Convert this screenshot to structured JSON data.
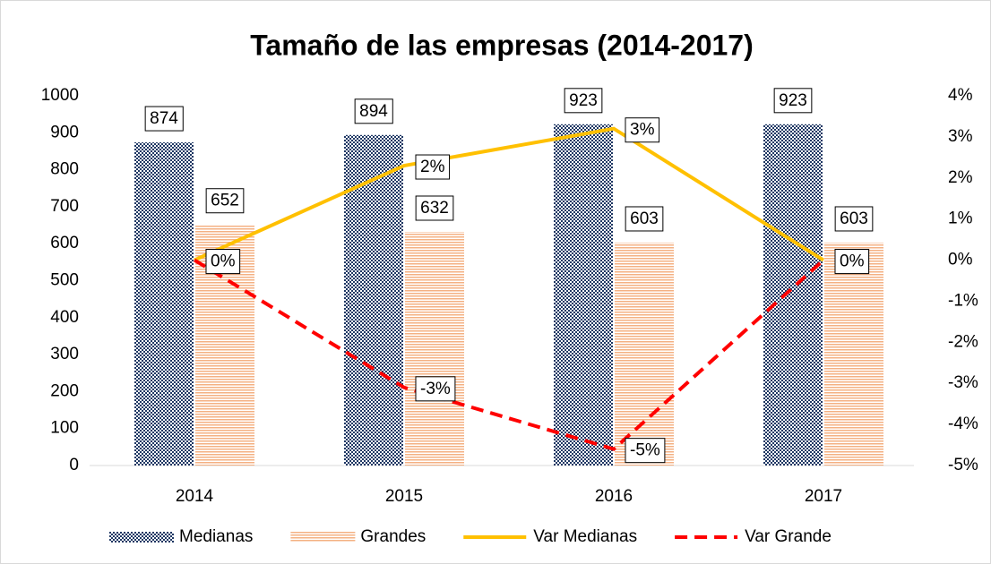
{
  "chart_data": {
    "type": "bar",
    "title": "Tamaño de las empresas (2014-2017)",
    "categories": [
      "2014",
      "2015",
      "2016",
      "2017"
    ],
    "series": [
      {
        "name": "Medianas",
        "type": "bar",
        "color": "#1f3864",
        "values": [
          874,
          894,
          923,
          923
        ]
      },
      {
        "name": "Grandes",
        "type": "bar",
        "color": "#f4b183",
        "values": [
          652,
          632,
          603,
          603
        ]
      },
      {
        "name": "Var Medianas",
        "type": "line",
        "axis": "y2",
        "color": "#ffc000",
        "dashed": false,
        "values": [
          0,
          2.3,
          3.2,
          0
        ],
        "value_labels": [
          "0%",
          "2%",
          "3%",
          "0%"
        ]
      },
      {
        "name": "Var Grande",
        "type": "line",
        "axis": "y2",
        "color": "#ff0000",
        "dashed": true,
        "values": [
          0,
          -3.1,
          -4.6,
          0
        ],
        "value_labels": [
          "0%",
          "-3%",
          "-5%",
          "0%"
        ]
      }
    ],
    "ylim": [
      0,
      1000
    ],
    "yticks": [
      0,
      100,
      200,
      300,
      400,
      500,
      600,
      700,
      800,
      900,
      1000
    ],
    "y2lim": [
      -5,
      4
    ],
    "y2ticks": [
      {
        "value": -5,
        "label": "-5%"
      },
      {
        "value": -4,
        "label": "-4%"
      },
      {
        "value": -3,
        "label": "-3%"
      },
      {
        "value": -2,
        "label": "-2%"
      },
      {
        "value": -1,
        "label": "-1%"
      },
      {
        "value": 0,
        "label": "0%"
      },
      {
        "value": 1,
        "label": "1%"
      },
      {
        "value": 2,
        "label": "2%"
      },
      {
        "value": 3,
        "label": "3%"
      },
      {
        "value": 4,
        "label": "4%"
      }
    ],
    "legend": "bottom",
    "grid": false
  }
}
